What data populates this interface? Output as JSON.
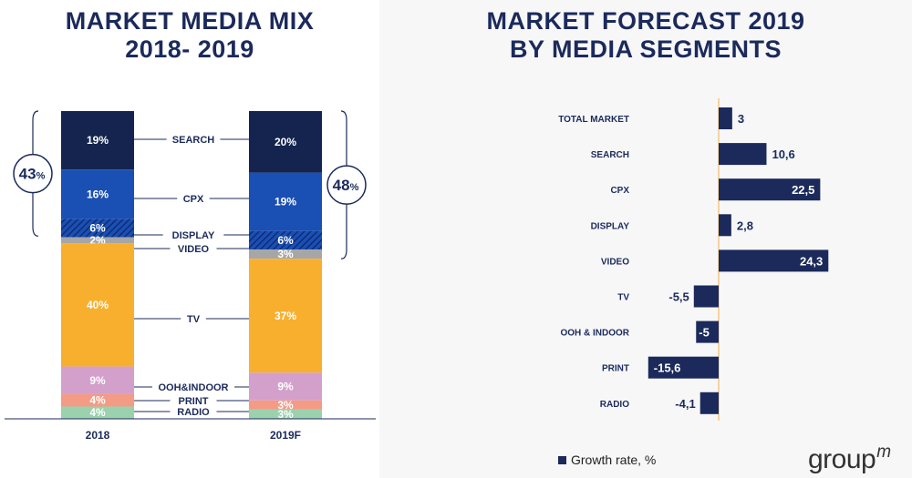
{
  "left_title": [
    "MARKET MEDIA MIX",
    "2018- 2019"
  ],
  "right_title": [
    "MARKET FORECAST 2019",
    "BY MEDIA SEGMENTS"
  ],
  "colors": {
    "navy": "#1b2a5b",
    "search": "#14244f",
    "cpx": "#1a4fb4",
    "display": "#1a4fb4",
    "video": "#a6a6a6",
    "tv": "#f9af2e",
    "ooh": "#d3a0cc",
    "print": "#f49b86",
    "radio": "#9bd1ad"
  },
  "chart_data": [
    {
      "type": "bar",
      "stacked": true,
      "title": "MARKET MEDIA MIX 2018- 2019",
      "categories": [
        "2018",
        "2019F"
      ],
      "segment_labels": [
        "SEARCH",
        "CPX",
        "DISPLAY",
        "VIDEO",
        "TV",
        "OOH&INDOOR",
        "PRINT",
        "RADIO"
      ],
      "series": [
        {
          "name": "SEARCH",
          "values": [
            19,
            20
          ],
          "labels": [
            "19%",
            "20%"
          ]
        },
        {
          "name": "CPX",
          "values": [
            16,
            19
          ],
          "labels": [
            "16%",
            "19%"
          ]
        },
        {
          "name": "DISPLAY",
          "values": [
            6,
            6
          ],
          "labels": [
            "6%",
            "6%"
          ]
        },
        {
          "name": "VIDEO",
          "values": [
            2,
            3
          ],
          "labels": [
            "2%",
            "3%"
          ]
        },
        {
          "name": "TV",
          "values": [
            40,
            37
          ],
          "labels": [
            "40%",
            "37%"
          ]
        },
        {
          "name": "OOH&INDOOR",
          "values": [
            9,
            9
          ],
          "labels": [
            "9%",
            "9%"
          ]
        },
        {
          "name": "PRINT",
          "values": [
            4,
            3
          ],
          "labels": [
            "4%",
            "3%"
          ]
        },
        {
          "name": "RADIO",
          "values": [
            4,
            3
          ],
          "labels": [
            "4%",
            "3%"
          ]
        }
      ],
      "digital_share": {
        "values": [
          "43",
          "48"
        ],
        "unit": "%"
      },
      "ylim": [
        0,
        100
      ]
    },
    {
      "type": "bar",
      "orientation": "horizontal",
      "title": "MARKET FORECAST 2019 BY MEDIA SEGMENTS",
      "categories": [
        "TOTAL MARKET",
        "SEARCH",
        "CPX",
        "DISPLAY",
        "VIDEO",
        "TV",
        "OOH & INDOOR",
        "PRINT",
        "RADIO"
      ],
      "values": [
        3,
        10.6,
        22.5,
        2.8,
        24.3,
        -5.5,
        -5,
        -15.6,
        -4.1
      ],
      "labels": [
        "3",
        "10,6",
        "22,5",
        "2,8",
        "24,3",
        "-5,5",
        "-5",
        "-15,6",
        "-4,1"
      ],
      "legend": "Growth rate, %",
      "legend_position": "bottom-left"
    }
  ],
  "logo": {
    "text": "group",
    "sup": "m"
  }
}
